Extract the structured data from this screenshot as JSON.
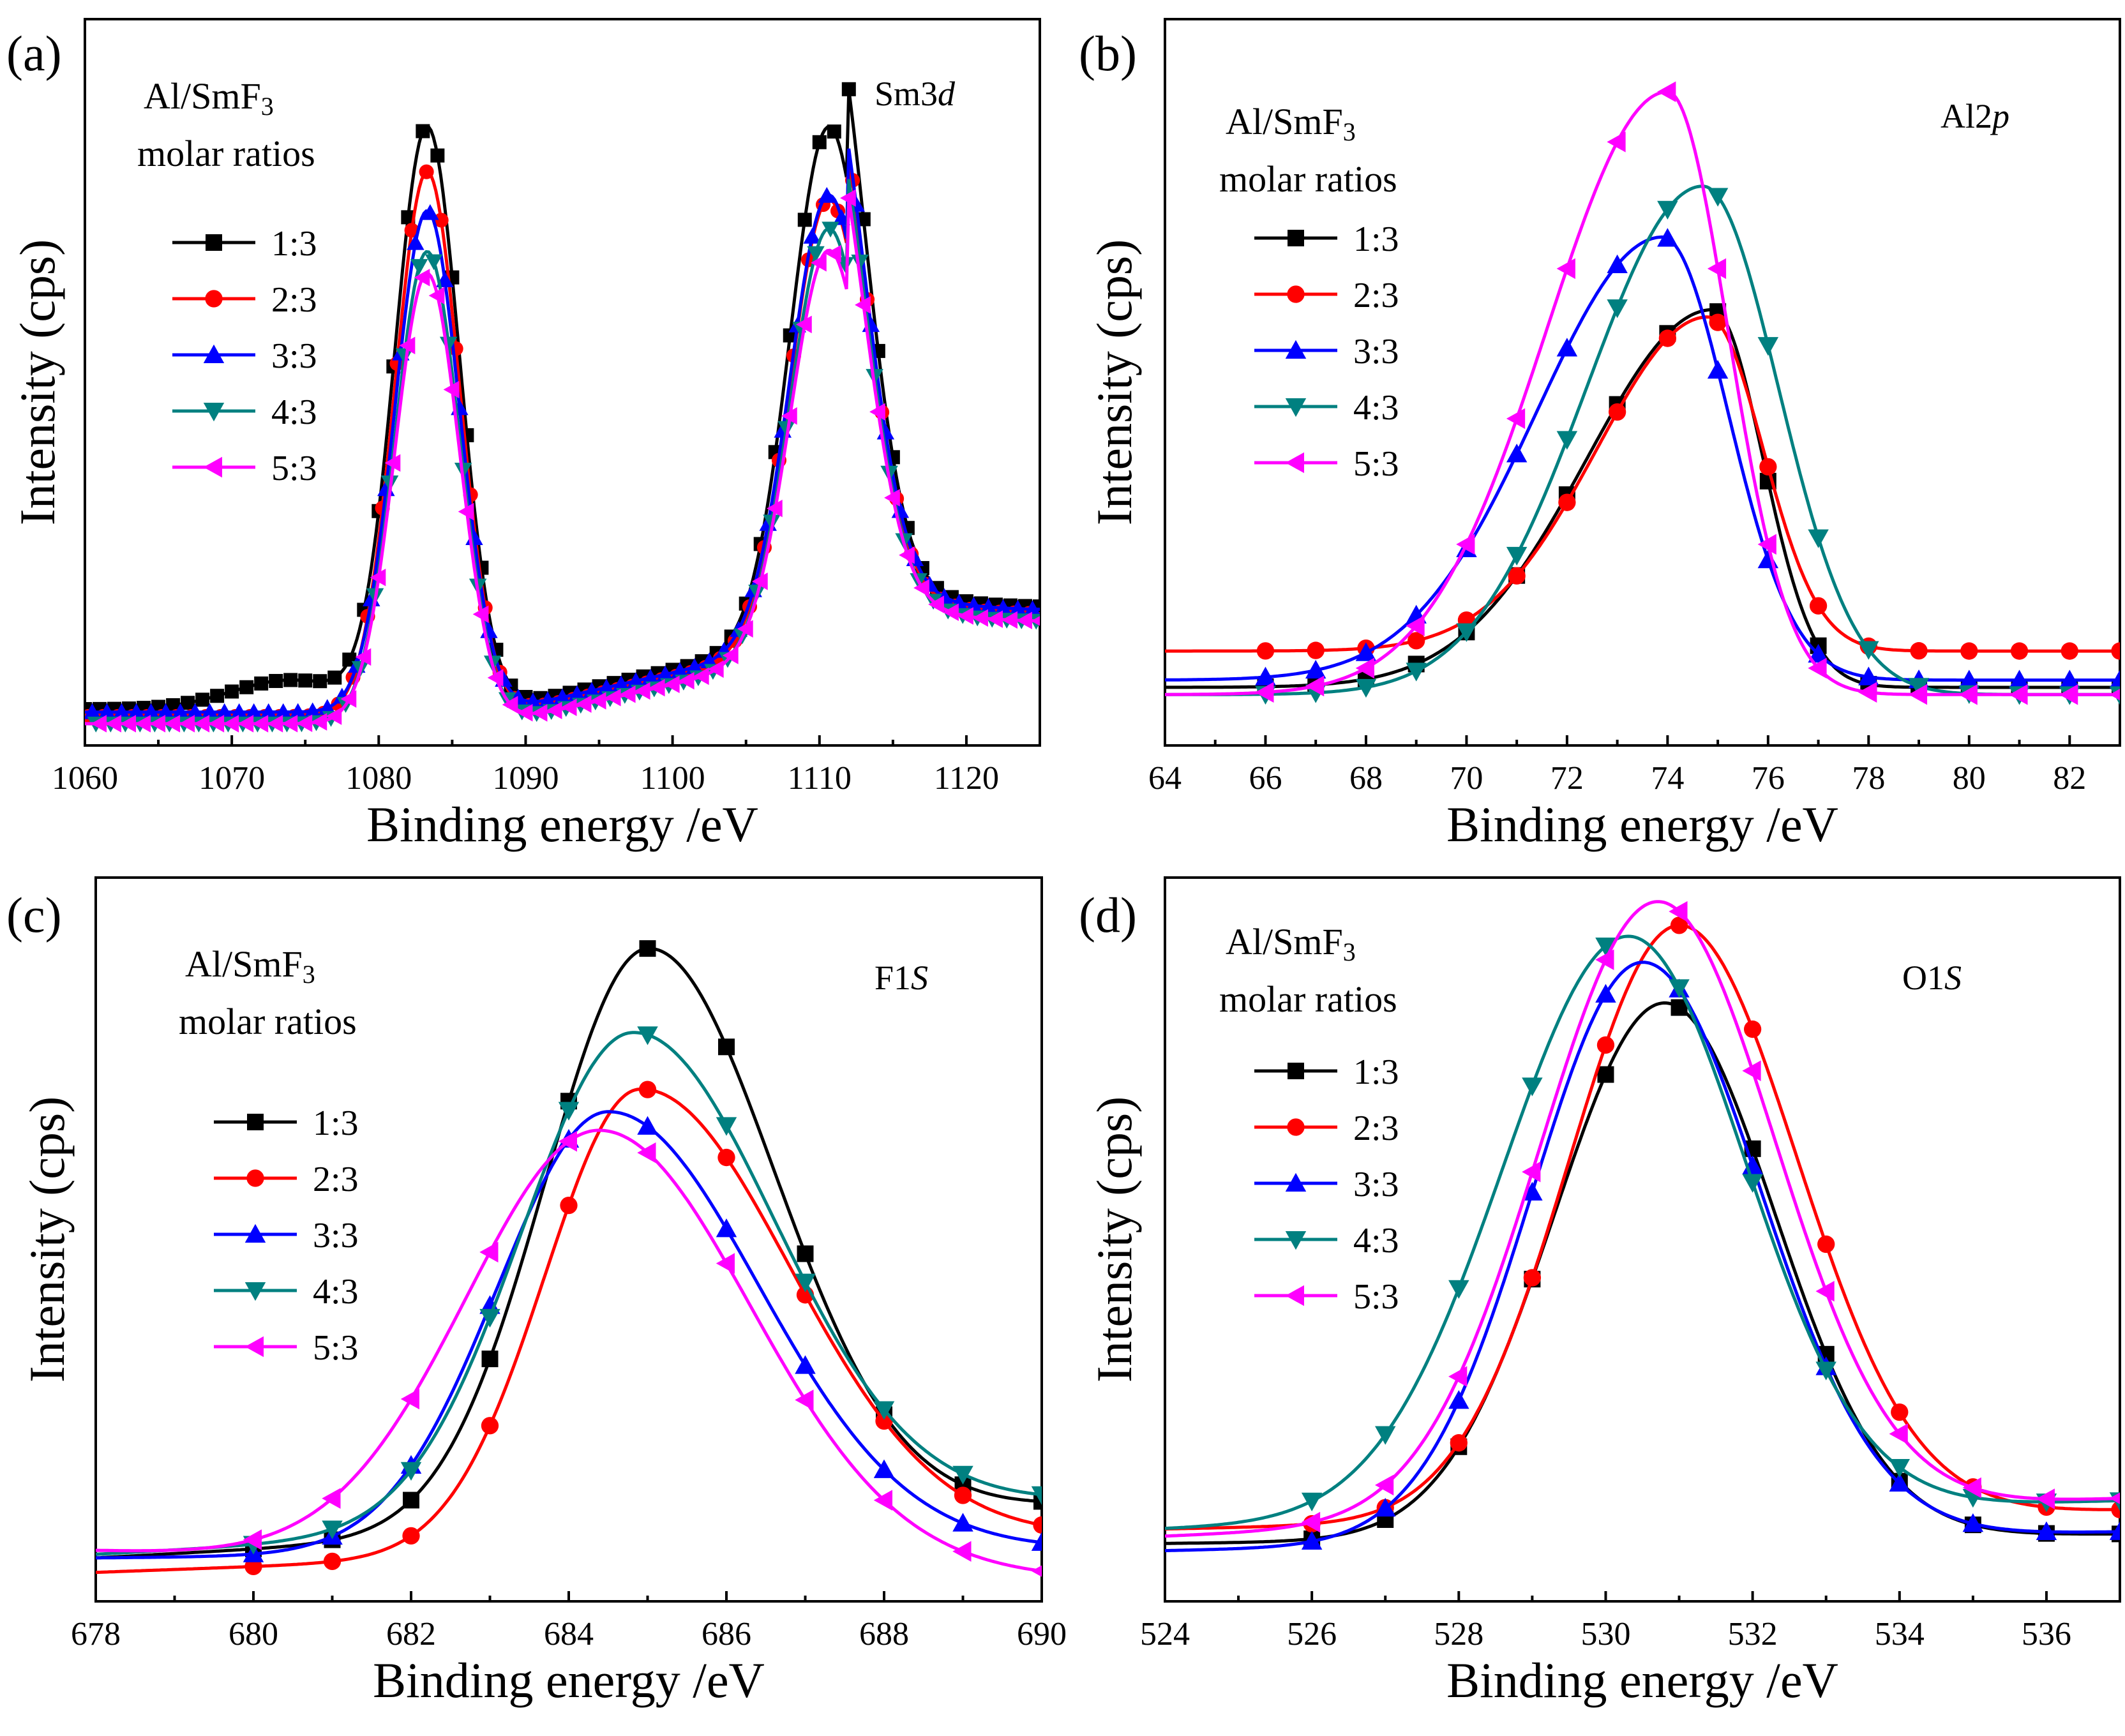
{
  "figure": {
    "series_names": [
      "1:3",
      "2:3",
      "3:3",
      "4:3",
      "5:3"
    ],
    "series_colors": [
      "#000000",
      "#ff0000",
      "#0000ff",
      "#008080",
      "#ff00ff"
    ],
    "series_markers": [
      "square",
      "circle",
      "triangle-up",
      "triangle-down",
      "triangle-left"
    ]
  },
  "chart_data": [
    {
      "type": "line",
      "panel_label": "(a)",
      "core_level_main": "Sm3",
      "core_level_italic": "d",
      "legend_title_line1_main": "Al/SmF",
      "legend_title_line1_sub": "3",
      "legend_title_line2": "molar ratios",
      "xlabel": "Binding energy /eV",
      "ylabel": "Intensity (cps)",
      "xlim": [
        1060,
        1125
      ],
      "ylim": [
        0,
        100
      ],
      "xticks": [
        1060,
        1070,
        1080,
        1090,
        1100,
        1110,
        1120
      ],
      "xtick_labels": [
        "1060",
        "1070",
        "1080",
        "1090",
        "1100",
        "1110",
        "1120"
      ],
      "peaks": [
        {
          "center": 1083.3,
          "width": 2.2
        },
        {
          "center": 1110.6,
          "width": 2.6
        }
      ],
      "series": [
        {
          "name": "1:3",
          "baseline": 5.0,
          "pA": 80.0,
          "pB": 70.0,
          "slope": 0.45,
          "plateau": 4.0,
          "pc": 1074,
          "pw": 4
        },
        {
          "name": "2:3",
          "baseline": 4.0,
          "pA": 75.0,
          "pB": 61.0,
          "slope": 0.45,
          "plateau": 0.0,
          "pc": 1074,
          "pw": 4
        },
        {
          "name": "3:3",
          "baseline": 4.6,
          "pA": 69.0,
          "pB": 61.0,
          "slope": 0.45,
          "plateau": 0.0,
          "pc": 1074,
          "pw": 4
        },
        {
          "name": "4:3",
          "baseline": 3.0,
          "pA": 65.0,
          "pB": 58.0,
          "slope": 0.45,
          "plateau": 0.0,
          "pc": 1074,
          "pw": 4
        },
        {
          "name": "5:3",
          "baseline": 3.0,
          "pA": 62.0,
          "pB": 55.0,
          "slope": 0.45,
          "plateau": 0.0,
          "pc": 1074,
          "pw": 4
        }
      ]
    },
    {
      "type": "line",
      "panel_label": "(b)",
      "core_level_main": "Al2",
      "core_level_italic": "p",
      "legend_title_line1_main": "Al/SmF",
      "legend_title_line1_sub": "3",
      "legend_title_line2": "molar ratios",
      "xlabel": "Binding energy /eV",
      "ylabel": "Intensity (cps)",
      "xlim": [
        64,
        83
      ],
      "ylim": [
        0,
        100
      ],
      "xticks": [
        64,
        66,
        68,
        70,
        72,
        74,
        76,
        78,
        80,
        82
      ],
      "xtick_labels": [
        "64",
        "66",
        "68",
        "70",
        "72",
        "74",
        "76",
        "78",
        "80",
        "82"
      ],
      "series": [
        {
          "name": "1:3",
          "baseline": 8.0,
          "amp": 52.0,
          "center": 74.9,
          "left_width": 2.5,
          "right_width": 1.0
        },
        {
          "name": "2:3",
          "baseline": 13.0,
          "amp": 46.0,
          "center": 74.8,
          "left_width": 2.2,
          "right_width": 1.1
        },
        {
          "name": "3:3",
          "baseline": 9.0,
          "amp": 61.0,
          "center": 73.9,
          "left_width": 2.5,
          "right_width": 1.3
        },
        {
          "name": "4:3",
          "baseline": 7.0,
          "amp": 70.0,
          "center": 74.7,
          "left_width": 2.3,
          "right_width": 1.5
        },
        {
          "name": "5:3",
          "baseline": 7.0,
          "amp": 83.0,
          "center": 74.0,
          "left_width": 2.4,
          "right_width": 1.2
        }
      ]
    },
    {
      "type": "line",
      "panel_label": "(c)",
      "core_level_main": "F1",
      "core_level_italic": "S",
      "legend_title_line1_main": "Al/SmF",
      "legend_title_line1_sub": "3",
      "legend_title_line2": "molar ratios",
      "xlabel": "Binding energy /eV",
      "ylabel": "Intensity (cps)",
      "xlim": [
        678,
        690
      ],
      "ylim": [
        0,
        100
      ],
      "xticks": [
        678,
        680,
        682,
        684,
        686,
        688,
        690
      ],
      "xtick_labels": [
        "678",
        "680",
        "682",
        "684",
        "686",
        "688",
        "690"
      ],
      "series": [
        {
          "name": "1:3",
          "baseline": 6.0,
          "amp": 80.0,
          "center": 685.0,
          "left_width": 1.3,
          "right_width": 1.6,
          "slope": 0.6
        },
        {
          "name": "2:3",
          "baseline": 4.0,
          "amp": 64.0,
          "center": 684.9,
          "left_width": 1.2,
          "right_width": 1.9,
          "slope": 0.4
        },
        {
          "name": "3:3",
          "baseline": 6.0,
          "amp": 61.0,
          "center": 684.5,
          "left_width": 1.4,
          "right_width": 1.9,
          "slope": 0.1
        },
        {
          "name": "4:3",
          "baseline": 6.5,
          "amp": 68.0,
          "center": 684.8,
          "left_width": 1.4,
          "right_width": 1.8,
          "slope": 0.6
        },
        {
          "name": "5:3",
          "baseline": 7.0,
          "amp": 60.0,
          "center": 684.4,
          "left_width": 1.7,
          "right_width": 1.9,
          "slope": -0.3
        }
      ]
    },
    {
      "type": "line",
      "panel_label": "(d)",
      "core_level_main": "O1",
      "core_level_italic": "S",
      "legend_title_line1_main": "Al/SmF",
      "legend_title_line1_sub": "3",
      "legend_title_line2": "molar ratios",
      "xlabel": "Binding energy /eV",
      "ylabel": "Intensity (cps)",
      "xlim": [
        524,
        537
      ],
      "ylim": [
        0,
        100
      ],
      "xticks": [
        524,
        526,
        528,
        530,
        532,
        534,
        536
      ],
      "xtick_labels": [
        "524",
        "526",
        "528",
        "530",
        "532",
        "534",
        "536"
      ],
      "series": [
        {
          "name": "1:3",
          "baseline": 8.0,
          "amp": 74.0,
          "center": 530.8,
          "left_width": 1.5,
          "right_width": 1.5,
          "slope": 0.1
        },
        {
          "name": "2:3",
          "baseline": 10.0,
          "amp": 82.0,
          "center": 531.0,
          "left_width": 1.5,
          "right_width": 1.6,
          "slope": 0.2
        },
        {
          "name": "3:3",
          "baseline": 7.0,
          "amp": 80.0,
          "center": 530.5,
          "left_width": 1.5,
          "right_width": 1.6,
          "slope": 0.2
        },
        {
          "name": "4:3",
          "baseline": 10.0,
          "amp": 80.0,
          "center": 530.3,
          "left_width": 1.7,
          "right_width": 1.6,
          "slope": 0.3
        },
        {
          "name": "5:3",
          "baseline": 9.0,
          "amp": 85.0,
          "center": 530.7,
          "left_width": 1.6,
          "right_width": 1.6,
          "slope": 0.4
        }
      ]
    }
  ]
}
